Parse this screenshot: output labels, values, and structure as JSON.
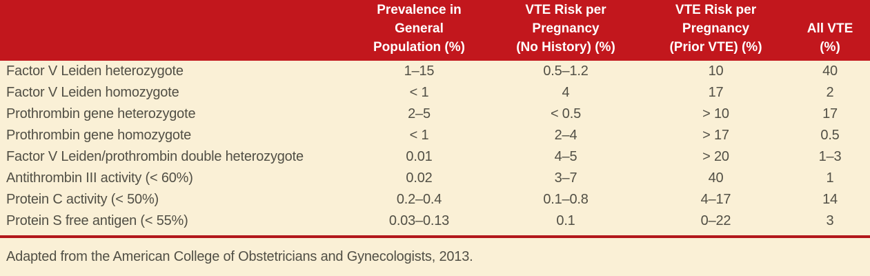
{
  "colors": {
    "header_bg": "#c2171d",
    "header_text": "#ffffff",
    "body_bg": "#faf0d6",
    "body_text": "#514f45",
    "divider": "#b2181c"
  },
  "table": {
    "header": {
      "row_label_col": "",
      "prevalence_lines": [
        "Prevalence in",
        "General",
        "Population (%)"
      ],
      "no_history_lines": [
        "VTE Risk per",
        "Pregnancy",
        "(No History) (%)"
      ],
      "prior_vte_lines": [
        "VTE Risk per",
        "Pregnancy",
        "(Prior VTE) (%)"
      ],
      "all_vte_lines": [
        "All VTE",
        "(%)"
      ]
    },
    "rows": [
      {
        "label": "Factor V Leiden heterozygote",
        "values": [
          "1–15",
          "0.5–1.2",
          "10",
          "40"
        ]
      },
      {
        "label": "Factor V Leiden homozygote",
        "values": [
          "< 1",
          "4",
          "17",
          "2"
        ]
      },
      {
        "label": "Prothrombin gene heterozygote",
        "values": [
          "2–5",
          "< 0.5",
          "> 10",
          "17"
        ]
      },
      {
        "label": "Prothrombin gene homozygote",
        "values": [
          "< 1",
          "2–4",
          "> 17",
          "0.5"
        ]
      },
      {
        "label": "Factor V Leiden/prothrombin double heterozygote",
        "values": [
          "0.01",
          "4–5",
          "> 20",
          "1–3"
        ]
      },
      {
        "label": "Antithrombin III activity (< 60%)",
        "values": [
          "0.02",
          "3–7",
          "40",
          "1"
        ]
      },
      {
        "label": "Protein C activity (< 50%)",
        "values": [
          "0.2–0.4",
          "0.1–0.8",
          "4–17",
          "14"
        ]
      },
      {
        "label": "Protein S free antigen (< 55%)",
        "values": [
          "0.03–0.13",
          "0.1",
          "0–22",
          "3"
        ]
      }
    ]
  },
  "footer": {
    "note": "Adapted from the American College of Obstetricians and Gynecologists, 2013."
  }
}
